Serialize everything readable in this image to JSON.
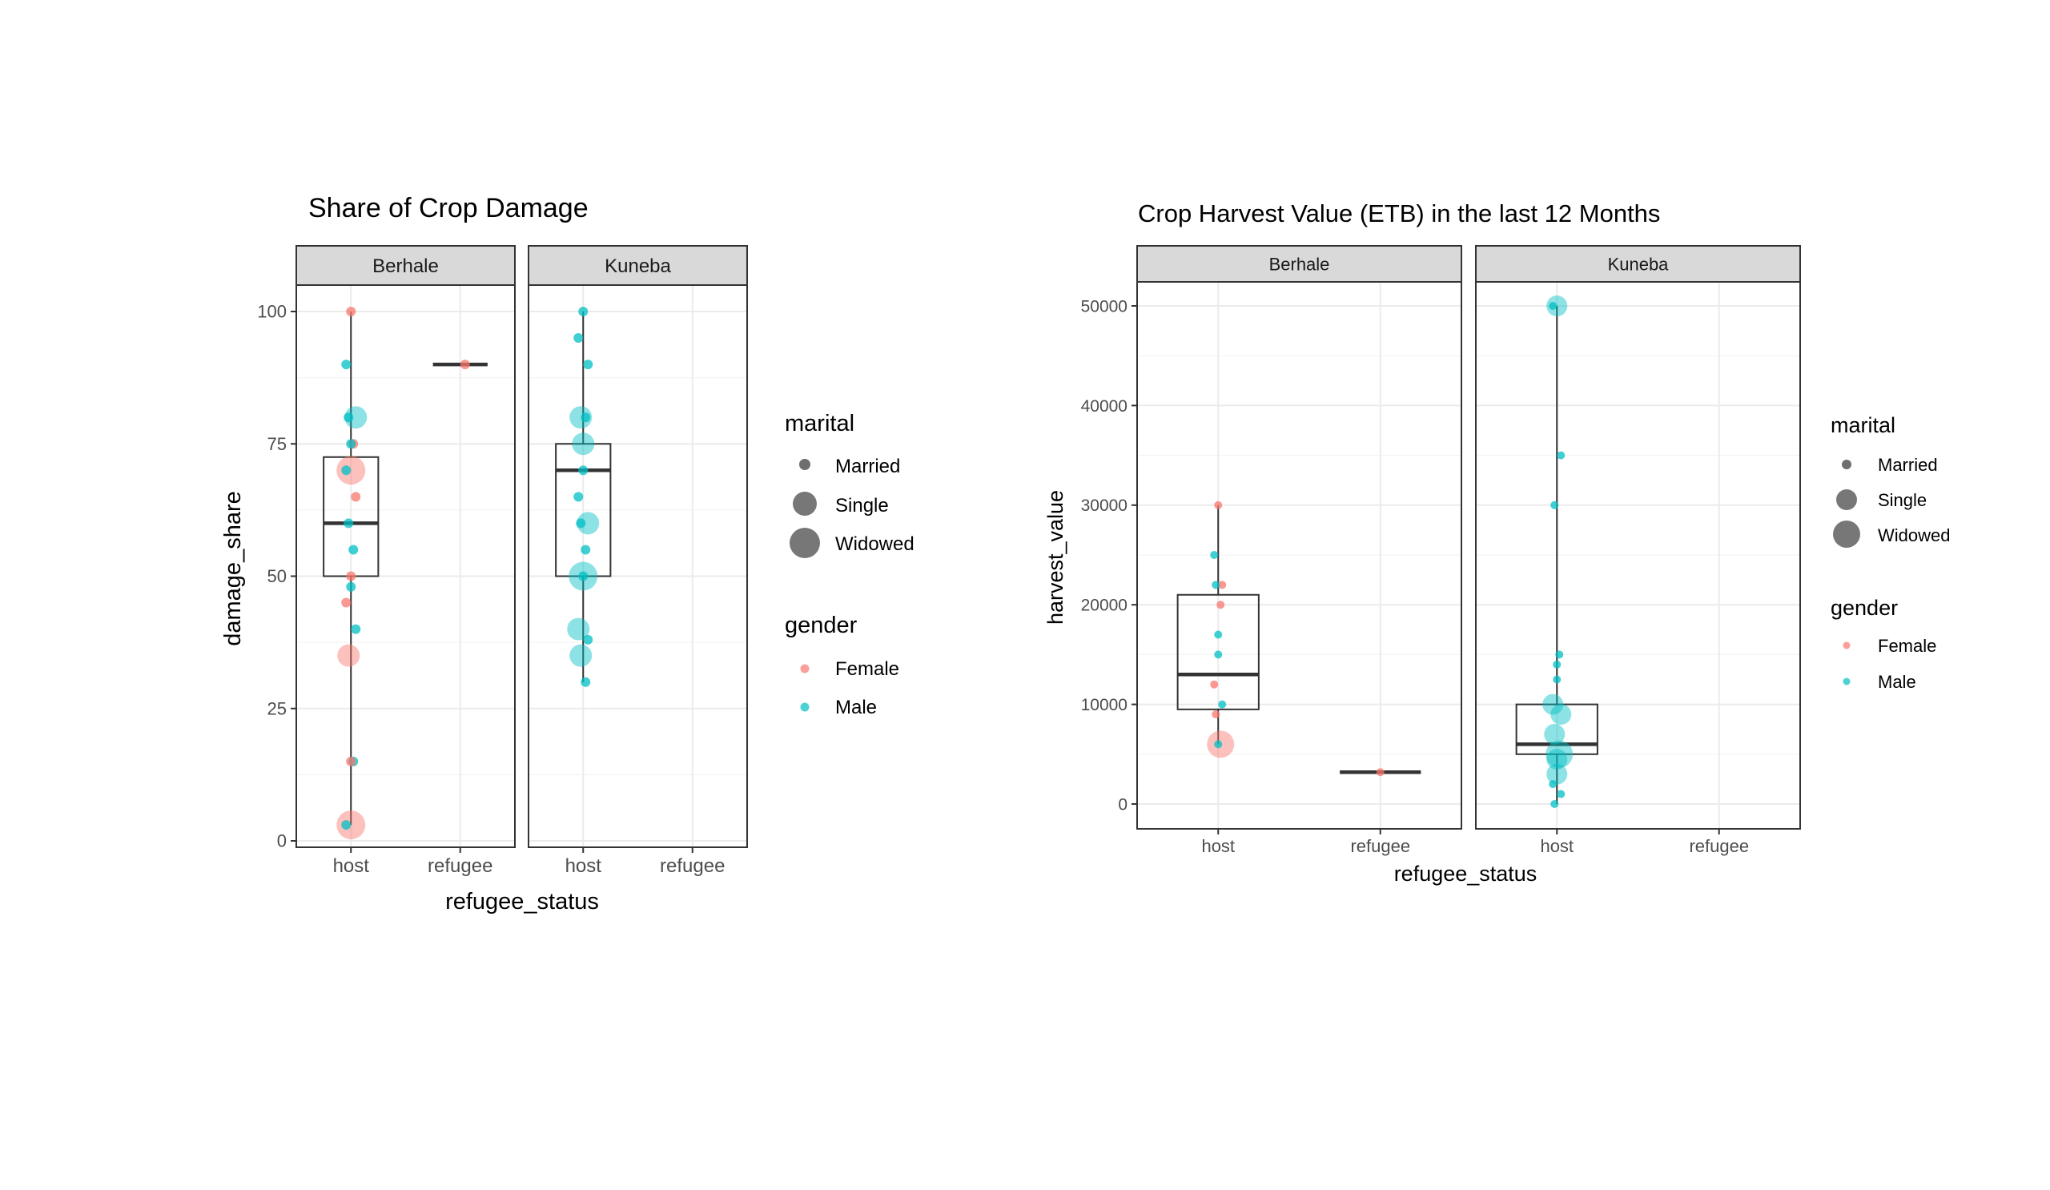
{
  "chart_data": [
    {
      "type": "boxplot-jitter",
      "title": "Share of Crop Damage",
      "xlabel": "refugee_status",
      "ylabel": "damage_share",
      "ylim": [
        0,
        100
      ],
      "yticks": [
        0,
        25,
        50,
        75,
        100
      ],
      "categories": [
        "host",
        "refugee"
      ],
      "facets": [
        {
          "label": "Berhale",
          "boxes": [
            {
              "category": "host",
              "q1": 50,
              "median": 60,
              "q3": 72.5,
              "whisker_low": 3,
              "whisker_high": 100
            },
            {
              "category": "refugee",
              "q1": 90,
              "median": 90,
              "q3": 90,
              "whisker_low": 90,
              "whisker_high": 90
            }
          ],
          "points": [
            {
              "category": "host",
              "value": 100,
              "gender": "Female",
              "marital": "Married"
            },
            {
              "category": "host",
              "value": 90,
              "gender": "Male",
              "marital": "Married"
            },
            {
              "category": "host",
              "value": 80,
              "gender": "Male",
              "marital": "Single"
            },
            {
              "category": "host",
              "value": 80,
              "gender": "Male",
              "marital": "Married"
            },
            {
              "category": "host",
              "value": 75,
              "gender": "Female",
              "marital": "Married"
            },
            {
              "category": "host",
              "value": 75,
              "gender": "Male",
              "marital": "Married"
            },
            {
              "category": "host",
              "value": 70,
              "gender": "Female",
              "marital": "Widowed"
            },
            {
              "category": "host",
              "value": 70,
              "gender": "Male",
              "marital": "Married"
            },
            {
              "category": "host",
              "value": 65,
              "gender": "Female",
              "marital": "Married"
            },
            {
              "category": "host",
              "value": 60,
              "gender": "Male",
              "marital": "Married"
            },
            {
              "category": "host",
              "value": 55,
              "gender": "Male",
              "marital": "Married"
            },
            {
              "category": "host",
              "value": 50,
              "gender": "Female",
              "marital": "Married"
            },
            {
              "category": "host",
              "value": 48,
              "gender": "Male",
              "marital": "Married"
            },
            {
              "category": "host",
              "value": 45,
              "gender": "Female",
              "marital": "Married"
            },
            {
              "category": "host",
              "value": 40,
              "gender": "Male",
              "marital": "Married"
            },
            {
              "category": "host",
              "value": 35,
              "gender": "Female",
              "marital": "Single"
            },
            {
              "category": "host",
              "value": 15,
              "gender": "Male",
              "marital": "Married"
            },
            {
              "category": "host",
              "value": 15,
              "gender": "Female",
              "marital": "Married"
            },
            {
              "category": "host",
              "value": 3,
              "gender": "Female",
              "marital": "Widowed"
            },
            {
              "category": "host",
              "value": 3,
              "gender": "Male",
              "marital": "Married"
            },
            {
              "category": "refugee",
              "value": 90,
              "gender": "Female",
              "marital": "Married"
            }
          ]
        },
        {
          "label": "Kuneba",
          "boxes": [
            {
              "category": "host",
              "q1": 50,
              "median": 70,
              "q3": 75,
              "whisker_low": 30,
              "whisker_high": 100
            }
          ],
          "points": [
            {
              "category": "host",
              "value": 100,
              "gender": "Male",
              "marital": "Married"
            },
            {
              "category": "host",
              "value": 95,
              "gender": "Male",
              "marital": "Married"
            },
            {
              "category": "host",
              "value": 90,
              "gender": "Male",
              "marital": "Married"
            },
            {
              "category": "host",
              "value": 80,
              "gender": "Male",
              "marital": "Single"
            },
            {
              "category": "host",
              "value": 80,
              "gender": "Male",
              "marital": "Married"
            },
            {
              "category": "host",
              "value": 75,
              "gender": "Male",
              "marital": "Single"
            },
            {
              "category": "host",
              "value": 70,
              "gender": "Male",
              "marital": "Married"
            },
            {
              "category": "host",
              "value": 65,
              "gender": "Male",
              "marital": "Married"
            },
            {
              "category": "host",
              "value": 60,
              "gender": "Male",
              "marital": "Single"
            },
            {
              "category": "host",
              "value": 60,
              "gender": "Male",
              "marital": "Married"
            },
            {
              "category": "host",
              "value": 55,
              "gender": "Male",
              "marital": "Married"
            },
            {
              "category": "host",
              "value": 50,
              "gender": "Male",
              "marital": "Widowed"
            },
            {
              "category": "host",
              "value": 50,
              "gender": "Male",
              "marital": "Married"
            },
            {
              "category": "host",
              "value": 40,
              "gender": "Male",
              "marital": "Single"
            },
            {
              "category": "host",
              "value": 38,
              "gender": "Male",
              "marital": "Married"
            },
            {
              "category": "host",
              "value": 35,
              "gender": "Male",
              "marital": "Single"
            },
            {
              "category": "host",
              "value": 30,
              "gender": "Male",
              "marital": "Married"
            }
          ]
        }
      ],
      "legend": {
        "marital": {
          "title": "marital",
          "items": [
            "Married",
            "Single",
            "Widowed"
          ]
        },
        "gender": {
          "title": "gender",
          "items": [
            "Female",
            "Male"
          ]
        }
      }
    },
    {
      "type": "boxplot-jitter",
      "title": "Crop Harvest Value (ETB) in the last 12 Months",
      "xlabel": "refugee_status",
      "ylabel": "harvest_value",
      "ylim": [
        0,
        50000
      ],
      "yticks": [
        0,
        10000,
        20000,
        30000,
        40000,
        50000
      ],
      "categories": [
        "host",
        "refugee"
      ],
      "facets": [
        {
          "label": "Berhale",
          "boxes": [
            {
              "category": "host",
              "q1": 9500,
              "median": 13000,
              "q3": 21000,
              "whisker_low": 6000,
              "whisker_high": 30000
            },
            {
              "category": "refugee",
              "q1": 3200,
              "median": 3200,
              "q3": 3200,
              "whisker_low": 3200,
              "whisker_high": 3200
            }
          ],
          "points": [
            {
              "category": "host",
              "value": 30000,
              "gender": "Female",
              "marital": "Married"
            },
            {
              "category": "host",
              "value": 25000,
              "gender": "Male",
              "marital": "Married"
            },
            {
              "category": "host",
              "value": 22000,
              "gender": "Female",
              "marital": "Married"
            },
            {
              "category": "host",
              "value": 22000,
              "gender": "Male",
              "marital": "Married"
            },
            {
              "category": "host",
              "value": 20000,
              "gender": "Female",
              "marital": "Married"
            },
            {
              "category": "host",
              "value": 17000,
              "gender": "Male",
              "marital": "Married"
            },
            {
              "category": "host",
              "value": 15000,
              "gender": "Male",
              "marital": "Married"
            },
            {
              "category": "host",
              "value": 12000,
              "gender": "Female",
              "marital": "Married"
            },
            {
              "category": "host",
              "value": 10000,
              "gender": "Male",
              "marital": "Married"
            },
            {
              "category": "host",
              "value": 9000,
              "gender": "Female",
              "marital": "Married"
            },
            {
              "category": "host",
              "value": 6000,
              "gender": "Female",
              "marital": "Widowed"
            },
            {
              "category": "host",
              "value": 6000,
              "gender": "Male",
              "marital": "Married"
            },
            {
              "category": "refugee",
              "value": 3200,
              "gender": "Female",
              "marital": "Married"
            }
          ]
        },
        {
          "label": "Kuneba",
          "boxes": [
            {
              "category": "host",
              "q1": 5000,
              "median": 6000,
              "q3": 10000,
              "whisker_low": 0,
              "whisker_high": 50000
            }
          ],
          "points": [
            {
              "category": "host",
              "value": 50000,
              "gender": "Male",
              "marital": "Single"
            },
            {
              "category": "host",
              "value": 50000,
              "gender": "Male",
              "marital": "Married"
            },
            {
              "category": "host",
              "value": 35000,
              "gender": "Male",
              "marital": "Married"
            },
            {
              "category": "host",
              "value": 30000,
              "gender": "Male",
              "marital": "Married"
            },
            {
              "category": "host",
              "value": 15000,
              "gender": "Male",
              "marital": "Married"
            },
            {
              "category": "host",
              "value": 14000,
              "gender": "Male",
              "marital": "Married"
            },
            {
              "category": "host",
              "value": 12500,
              "gender": "Male",
              "marital": "Married"
            },
            {
              "category": "host",
              "value": 10000,
              "gender": "Male",
              "marital": "Single"
            },
            {
              "category": "host",
              "value": 9000,
              "gender": "Male",
              "marital": "Single"
            },
            {
              "category": "host",
              "value": 7000,
              "gender": "Male",
              "marital": "Single"
            },
            {
              "category": "host",
              "value": 5000,
              "gender": "Male",
              "marital": "Widowed"
            },
            {
              "category": "host",
              "value": 4500,
              "gender": "Male",
              "marital": "Single"
            },
            {
              "category": "host",
              "value": 3000,
              "gender": "Male",
              "marital": "Single"
            },
            {
              "category": "host",
              "value": 2000,
              "gender": "Male",
              "marital": "Married"
            },
            {
              "category": "host",
              "value": 1000,
              "gender": "Male",
              "marital": "Married"
            },
            {
              "category": "host",
              "value": 0,
              "gender": "Male",
              "marital": "Married"
            }
          ]
        }
      ],
      "legend": {
        "marital": {
          "title": "marital",
          "items": [
            "Married",
            "Single",
            "Widowed"
          ]
        },
        "gender": {
          "title": "gender",
          "items": [
            "Female",
            "Male"
          ]
        }
      }
    }
  ],
  "colors": {
    "female": "#F8766D",
    "male": "#00BFC4",
    "strip": "#D9D9D9",
    "grid": "#EBEBEB",
    "axis": "#333333",
    "legend_key": "#555555"
  }
}
